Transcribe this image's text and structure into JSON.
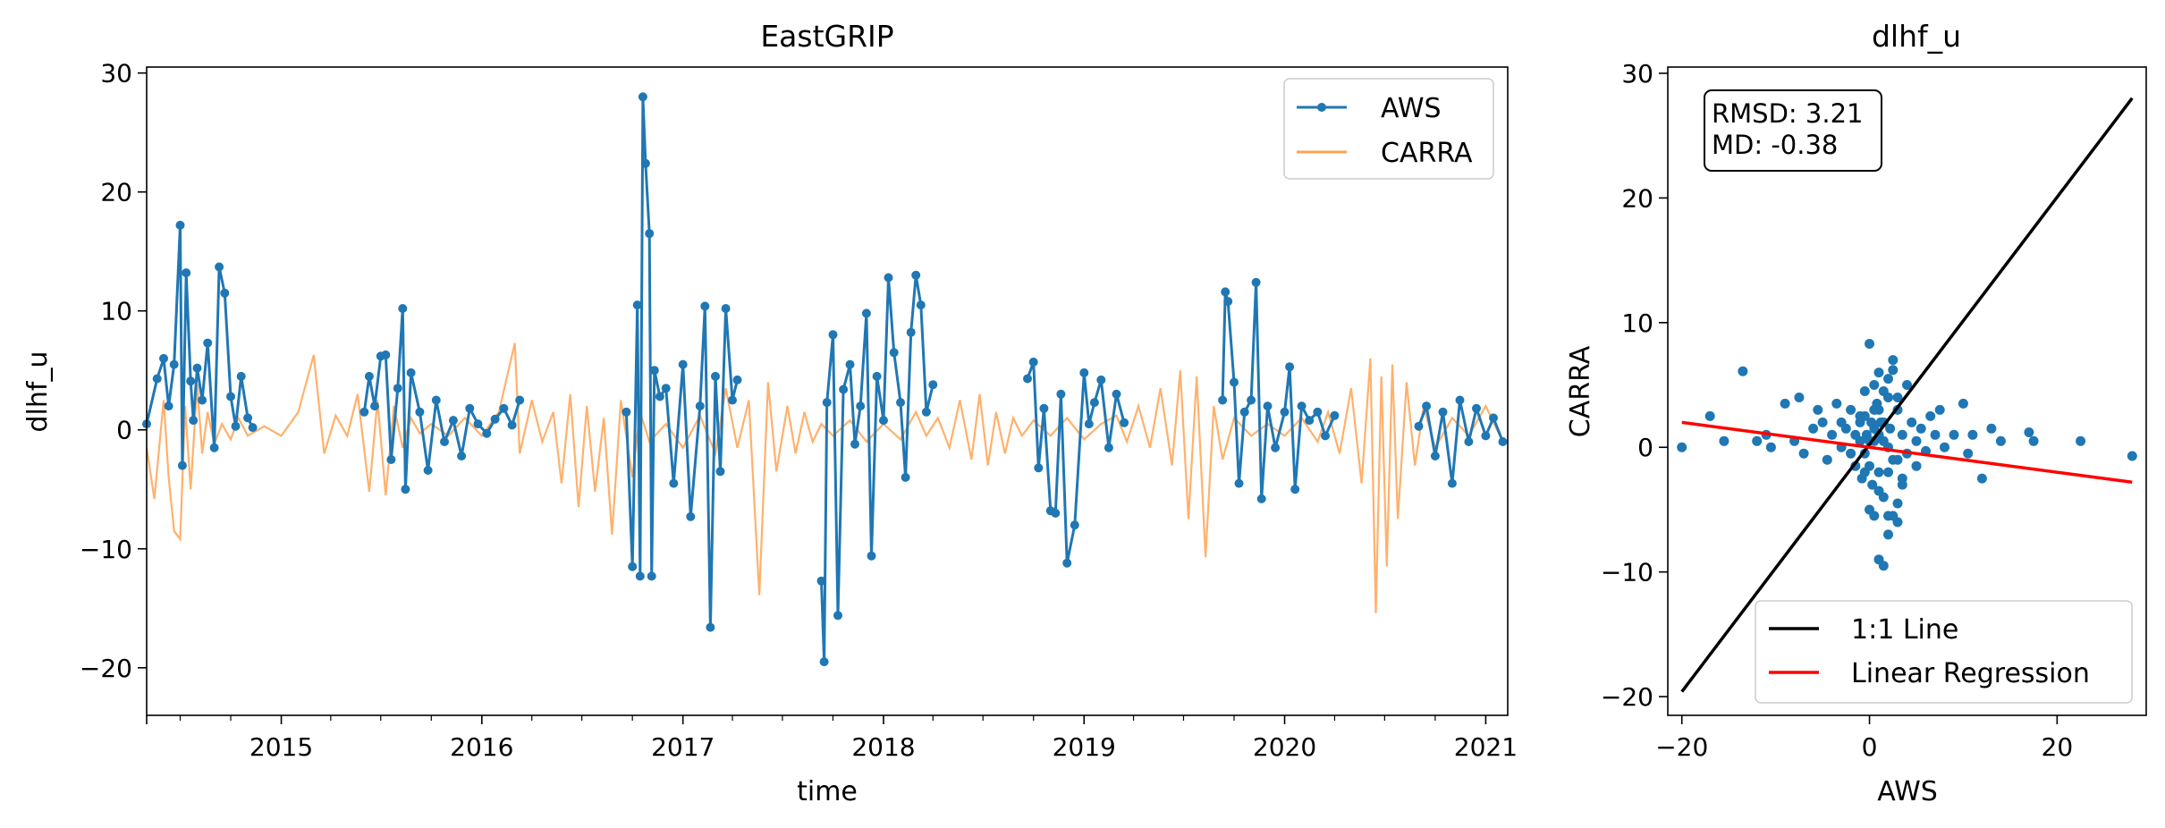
{
  "chart_data": [
    {
      "type": "line",
      "title": "EastGRIP",
      "xlabel": "time",
      "ylabel": "dlhf_u",
      "xlim": [
        "2014-05-01",
        "2021-02-10"
      ],
      "ylim": [
        -24,
        30.5
      ],
      "yticks": [
        -20,
        -10,
        0,
        10,
        20,
        30
      ],
      "ytick_labels": [
        "−20",
        "−10",
        "0",
        "10",
        "20",
        "30"
      ],
      "xticks": [
        "2015-01-01",
        "2016-01-01",
        "2017-01-01",
        "2018-01-01",
        "2019-01-01",
        "2020-01-01",
        "2021-01-01"
      ],
      "xtick_labels": [
        "2015",
        "2016",
        "2017",
        "2018",
        "2019",
        "2020",
        "2021"
      ],
      "legend_position": "top-right",
      "grid": false,
      "series": [
        {
          "name": "AWS",
          "color": "#1f77b4",
          "marker": "circle",
          "segments": [
            {
              "x": [
                "2014-05-01",
                "2014-05-20",
                "2014-06-01",
                "2014-06-10",
                "2014-06-20",
                "2014-07-01",
                "2014-07-05",
                "2014-07-12",
                "2014-07-20",
                "2014-07-25",
                "2014-08-01",
                "2014-08-10",
                "2014-08-20",
                "2014-09-01",
                "2014-09-10",
                "2014-09-20",
                "2014-10-01",
                "2014-10-10",
                "2014-10-20",
                "2014-11-01",
                "2014-11-10"
              ],
              "y": [
                0.5,
                4.3,
                6.0,
                2.0,
                5.5,
                17.2,
                -3.0,
                13.2,
                4.1,
                0.8,
                5.2,
                2.5,
                7.3,
                -1.5,
                13.7,
                11.5,
                2.8,
                0.3,
                4.5,
                1.0,
                0.2
              ]
            },
            {
              "x": [
                "2015-06-01",
                "2015-06-10",
                "2015-06-20",
                "2015-07-01",
                "2015-07-10",
                "2015-07-20",
                "2015-08-01",
                "2015-08-10",
                "2015-08-15",
                "2015-08-25",
                "2015-09-10",
                "2015-09-25",
                "2015-10-10",
                "2015-10-25",
                "2015-11-10",
                "2015-11-25",
                "2015-12-10",
                "2015-12-25",
                "2016-01-10",
                "2016-01-25",
                "2016-02-10",
                "2016-02-25",
                "2016-03-10"
              ],
              "y": [
                1.5,
                4.5,
                2.0,
                6.2,
                6.3,
                -2.5,
                3.5,
                10.2,
                -5.0,
                4.8,
                1.5,
                -3.4,
                2.5,
                -1.0,
                0.8,
                -2.2,
                1.8,
                0.5,
                -0.3,
                0.9,
                1.8,
                0.4,
                2.5
              ]
            },
            {
              "x": [
                "2016-09-20",
                "2016-10-01",
                "2016-10-10",
                "2016-10-15",
                "2016-10-20",
                "2016-10-25",
                "2016-11-01",
                "2016-11-05",
                "2016-11-10",
                "2016-11-20",
                "2016-12-01",
                "2016-12-15",
                "2017-01-01",
                "2017-01-15",
                "2017-02-01",
                "2017-02-10",
                "2017-02-20",
                "2017-03-01",
                "2017-03-10",
                "2017-03-20",
                "2017-04-01",
                "2017-04-10"
              ],
              "y": [
                1.5,
                -11.5,
                10.5,
                -12.3,
                28.0,
                22.4,
                16.5,
                -12.3,
                5.0,
                2.8,
                3.5,
                -4.5,
                5.5,
                -7.3,
                2.0,
                10.4,
                -16.6,
                4.5,
                -3.5,
                10.2,
                2.5,
                4.2
              ]
            },
            {
              "x": [
                "2017-09-10",
                "2017-09-15",
                "2017-09-20",
                "2017-10-01",
                "2017-10-10",
                "2017-10-20",
                "2017-11-01",
                "2017-11-10",
                "2017-11-20",
                "2017-12-01",
                "2017-12-10",
                "2017-12-20",
                "2018-01-01",
                "2018-01-10",
                "2018-01-20",
                "2018-02-01",
                "2018-02-10",
                "2018-02-20",
                "2018-03-01",
                "2018-03-10",
                "2018-03-20",
                "2018-04-01"
              ],
              "y": [
                -12.7,
                -19.5,
                2.3,
                8.0,
                -15.6,
                3.4,
                5.5,
                -1.2,
                2.0,
                9.8,
                -10.6,
                4.5,
                0.8,
                12.8,
                6.5,
                2.3,
                -4.0,
                8.2,
                13.0,
                10.5,
                1.5,
                3.8
              ]
            },
            {
              "x": [
                "2018-09-20",
                "2018-10-01",
                "2018-10-10",
                "2018-10-20",
                "2018-11-01",
                "2018-11-10",
                "2018-11-20",
                "2018-12-01",
                "2018-12-15",
                "2019-01-01",
                "2019-01-10",
                "2019-01-20",
                "2019-02-01",
                "2019-02-15",
                "2019-03-01",
                "2019-03-15"
              ],
              "y": [
                4.3,
                5.7,
                -3.2,
                1.8,
                -6.8,
                -7.0,
                3.0,
                -11.2,
                -8.0,
                4.8,
                0.5,
                2.3,
                4.2,
                -1.5,
                3.0,
                0.6
              ]
            },
            {
              "x": [
                "2019-09-10",
                "2019-09-15",
                "2019-09-20",
                "2019-10-01",
                "2019-10-10",
                "2019-10-20",
                "2019-11-01",
                "2019-11-10",
                "2019-11-20",
                "2019-12-01",
                "2019-12-15",
                "2020-01-01",
                "2020-01-10",
                "2020-01-20",
                "2020-02-01",
                "2020-02-15",
                "2020-03-01",
                "2020-03-15",
                "2020-04-01"
              ],
              "y": [
                2.5,
                11.6,
                10.8,
                4.0,
                -4.5,
                1.5,
                2.5,
                12.4,
                -5.8,
                2.0,
                -1.5,
                1.5,
                5.3,
                -5.0,
                2.0,
                0.8,
                1.5,
                -0.5,
                1.2
              ]
            },
            {
              "x": [
                "2020-09-01",
                "2020-09-15",
                "2020-10-01",
                "2020-10-15",
                "2020-11-01",
                "2020-11-15",
                "2020-12-01",
                "2020-12-15",
                "2021-01-01",
                "2021-01-15",
                "2021-02-01"
              ],
              "y": [
                0.3,
                2.0,
                -2.2,
                1.5,
                -4.5,
                2.5,
                -1.0,
                1.8,
                -0.5,
                1.0,
                -1.0
              ]
            }
          ]
        },
        {
          "name": "CARRA",
          "color": "#ffa352",
          "x": [
            "2014-05-01",
            "2014-05-15",
            "2014-06-01",
            "2014-06-10",
            "2014-06-20",
            "2014-07-01",
            "2014-07-10",
            "2014-07-20",
            "2014-08-01",
            "2014-08-10",
            "2014-08-20",
            "2014-09-01",
            "2014-09-15",
            "2014-10-01",
            "2014-10-15",
            "2014-11-01",
            "2014-12-01",
            "2015-01-01",
            "2015-02-01",
            "2015-03-01",
            "2015-03-20",
            "2015-04-10",
            "2015-05-01",
            "2015-05-20",
            "2015-06-10",
            "2015-06-25",
            "2015-07-10",
            "2015-07-25",
            "2015-08-10",
            "2015-08-25",
            "2015-09-10",
            "2015-10-01",
            "2015-11-01",
            "2015-12-01",
            "2016-01-01",
            "2016-02-01",
            "2016-03-01",
            "2016-03-10",
            "2016-04-01",
            "2016-04-20",
            "2016-05-10",
            "2016-05-25",
            "2016-06-10",
            "2016-06-25",
            "2016-07-10",
            "2016-07-25",
            "2016-08-10",
            "2016-08-25",
            "2016-09-10",
            "2016-10-01",
            "2016-10-15",
            "2016-11-01",
            "2016-12-01",
            "2017-01-01",
            "2017-02-01",
            "2017-03-01",
            "2017-03-20",
            "2017-04-10",
            "2017-05-01",
            "2017-05-20",
            "2017-06-05",
            "2017-06-20",
            "2017-07-10",
            "2017-07-25",
            "2017-08-10",
            "2017-08-25",
            "2017-09-10",
            "2017-10-01",
            "2017-11-01",
            "2017-12-01",
            "2018-01-01",
            "2018-02-01",
            "2018-03-01",
            "2018-03-20",
            "2018-04-10",
            "2018-05-01",
            "2018-05-20",
            "2018-06-10",
            "2018-06-25",
            "2018-07-10",
            "2018-07-25",
            "2018-08-10",
            "2018-08-25",
            "2018-09-10",
            "2018-10-01",
            "2018-11-01",
            "2018-12-01",
            "2019-01-01",
            "2019-02-01",
            "2019-03-01",
            "2019-03-20",
            "2019-04-10",
            "2019-05-01",
            "2019-05-20",
            "2019-06-10",
            "2019-06-25",
            "2019-07-10",
            "2019-07-25",
            "2019-08-10",
            "2019-08-25",
            "2019-09-10",
            "2019-10-01",
            "2019-11-01",
            "2019-12-01",
            "2020-01-01",
            "2020-02-01",
            "2020-03-01",
            "2020-03-20",
            "2020-04-10",
            "2020-05-01",
            "2020-05-20",
            "2020-06-05",
            "2020-06-15",
            "2020-06-25",
            "2020-07-05",
            "2020-07-15",
            "2020-07-25",
            "2020-08-10",
            "2020-08-25",
            "2020-09-10",
            "2020-10-01",
            "2020-11-01",
            "2020-12-01",
            "2021-01-01",
            "2021-02-01"
          ],
          "y": [
            -1.5,
            -5.8,
            2.5,
            -4.0,
            -8.5,
            -9.2,
            2.0,
            -5.0,
            3.8,
            -2.0,
            1.5,
            -1.2,
            0.5,
            -0.8,
            1.0,
            -0.5,
            0.3,
            -0.5,
            1.5,
            6.3,
            -2.0,
            1.2,
            -0.5,
            3.0,
            -5.2,
            2.5,
            -5.5,
            2.0,
            -1.5,
            1.0,
            -0.3,
            0.5,
            -0.5,
            1.0,
            -0.5,
            1.5,
            7.3,
            -2.0,
            2.5,
            -1.0,
            1.5,
            -4.5,
            3.0,
            -6.5,
            2.0,
            -5.2,
            1.0,
            -8.8,
            2.5,
            -4.0,
            1.5,
            -1.0,
            0.5,
            -1.5,
            1.2,
            -2.0,
            3.5,
            -1.5,
            2.5,
            -13.9,
            4.0,
            -3.5,
            2.0,
            -2.0,
            1.5,
            -1.0,
            0.5,
            -0.5,
            0.8,
            -1.0,
            0.5,
            -0.8,
            1.5,
            -0.5,
            1.0,
            -1.5,
            2.5,
            -2.5,
            3.0,
            -3.0,
            1.5,
            -2.0,
            1.0,
            -0.5,
            0.8,
            -0.5,
            1.0,
            -0.8,
            0.5,
            1.2,
            -1.0,
            2.0,
            -1.5,
            3.5,
            -3.0,
            5.0,
            -7.5,
            4.5,
            -10.7,
            2.0,
            -2.5,
            1.0,
            -0.5,
            0.5,
            -0.5,
            1.0,
            -1.0,
            1.5,
            -2.0,
            3.5,
            -4.5,
            6.0,
            -15.4,
            4.5,
            -11.5,
            5.5,
            -7.5,
            4.0,
            -3.0,
            2.0,
            -1.5,
            1.0,
            -0.5,
            2.0,
            -1.0
          ]
        }
      ]
    },
    {
      "type": "scatter",
      "title": "dlhf_u",
      "xlabel": "AWS",
      "ylabel": "CARRA",
      "xlim": [
        -21.5,
        29.5
      ],
      "ylim": [
        -21.5,
        30.5
      ],
      "xticks": [
        -20,
        0,
        20
      ],
      "xtick_labels": [
        "−20",
        "0",
        "20"
      ],
      "yticks": [
        -20,
        -10,
        0,
        10,
        20,
        30
      ],
      "ytick_labels": [
        "−20",
        "−10",
        "0",
        "10",
        "20",
        "30"
      ],
      "grid": false,
      "stats_box": [
        "RMSD: 3.21",
        "MD: -0.38"
      ],
      "legend_position": "bottom-right",
      "points": {
        "color": "#1f77b4",
        "x": [
          -20.0,
          -17.0,
          -15.5,
          -13.5,
          -12.0,
          -11.0,
          -10.5,
          -9.0,
          -8.0,
          -7.5,
          -7.0,
          -6.0,
          -5.5,
          -5.0,
          -4.5,
          -4.0,
          -3.5,
          -3.0,
          -3.0,
          -2.5,
          -2.0,
          -2.0,
          -1.5,
          -1.5,
          -1.0,
          -1.0,
          -0.8,
          -0.5,
          -0.5,
          -0.3,
          0.0,
          0.0,
          0.2,
          0.3,
          0.5,
          0.5,
          0.8,
          1.0,
          1.0,
          1.2,
          1.5,
          1.5,
          2.0,
          2.0,
          2.2,
          2.5,
          2.5,
          3.0,
          3.0,
          3.5,
          3.5,
          4.0,
          4.0,
          4.5,
          5.0,
          5.0,
          5.5,
          6.0,
          6.5,
          7.0,
          7.5,
          8.0,
          9.0,
          10.0,
          10.5,
          11.0,
          12.0,
          13.0,
          14.0,
          17.0,
          17.5,
          22.5,
          28.0,
          0.0,
          0.5,
          1.0,
          1.5,
          2.0,
          2.5,
          3.0,
          3.5,
          1.0,
          1.5,
          2.0,
          2.5,
          3.0,
          -1.0,
          -0.5,
          0.5,
          1.0,
          2.0,
          0.0,
          1.0,
          2.0,
          3.0,
          -0.5,
          0.5,
          1.5
        ],
        "y": [
          0.0,
          2.5,
          0.5,
          6.1,
          0.5,
          1.0,
          0.0,
          3.5,
          0.5,
          4.0,
          -0.5,
          1.5,
          3.0,
          2.0,
          -1.0,
          1.0,
          3.5,
          2.0,
          0.0,
          1.5,
          -0.5,
          3.0,
          1.0,
          -1.5,
          0.5,
          2.5,
          -2.5,
          4.5,
          -0.5,
          1.0,
          8.3,
          -1.5,
          2.0,
          -3.0,
          5.0,
          0.5,
          3.5,
          6.0,
          -2.0,
          2.0,
          0.5,
          -4.0,
          4.0,
          -5.5,
          1.5,
          7.0,
          -1.0,
          3.0,
          -6.0,
          1.0,
          -2.5,
          5.0,
          -0.5,
          2.0,
          0.5,
          -1.5,
          1.5,
          -0.3,
          2.5,
          1.0,
          3.0,
          0.0,
          1.0,
          3.5,
          -0.5,
          1.0,
          -2.5,
          1.5,
          0.5,
          1.2,
          0.5,
          0.5,
          -0.7,
          -5.0,
          -5.5,
          -9.0,
          -9.5,
          -7.0,
          -5.5,
          -4.5,
          -3.0,
          3.0,
          4.5,
          5.5,
          6.2,
          4.0,
          2.0,
          2.5,
          1.5,
          -3.5,
          -2.0,
          0.5,
          1.0,
          0.0,
          -1.0,
          -2.0,
          3.0,
          2.0
        ]
      },
      "lines": [
        {
          "name": "1:1 Line",
          "color": "#000000",
          "x": [
            -20,
            28
          ],
          "y": [
            -19.6,
            28
          ]
        },
        {
          "name": "Linear Regression",
          "color": "#ff0000",
          "x": [
            -20,
            28
          ],
          "y": [
            2.0,
            -2.8
          ]
        }
      ]
    }
  ]
}
